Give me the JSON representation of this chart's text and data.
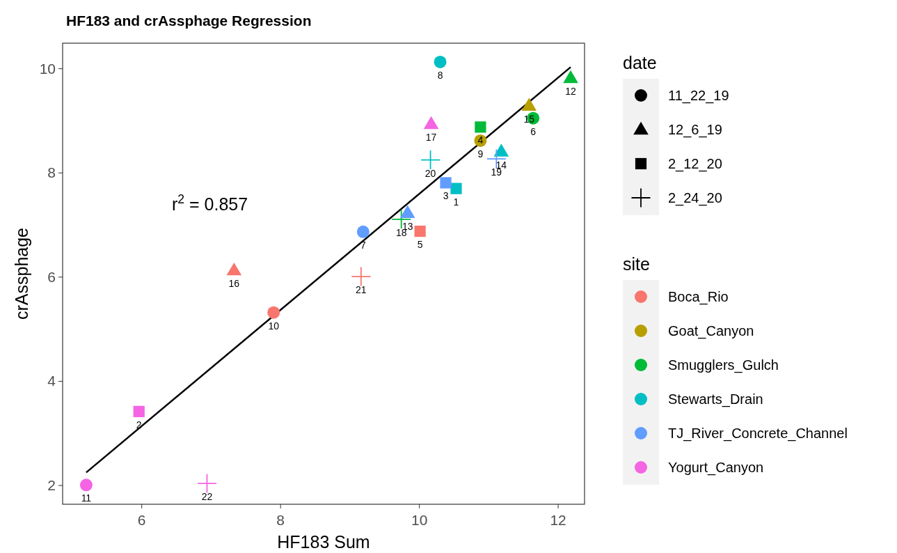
{
  "chart_data": {
    "type": "scatter",
    "title": "HF183 and crAssphage Regression",
    "xlabel": "HF183 Sum",
    "ylabel": "crAssphage",
    "legend_title": "site",
    "legend": "right",
    "xlim": [
      4.86,
      12.38
    ],
    "xticks": [
      6,
      8,
      10,
      12
    ],
    "ylim": [
      1.64,
      10.49
    ],
    "yticks": [
      2,
      4,
      6,
      8,
      10
    ],
    "grid": false,
    "annotations": [
      "r$^{2}$ = 0.857",
      "date",
      "11_22_19",
      "12_6_19",
      "2_12_20",
      "2_24_20",
      {
        "text": "1",
        "x": 10.53,
        "y": 7.7
      },
      {
        "text": "2",
        "x": 5.96,
        "y": 3.42
      },
      {
        "text": "3",
        "x": 10.38,
        "y": 7.81
      },
      {
        "text": "4",
        "x": 10.88,
        "y": 8.88
      },
      {
        "text": "5",
        "x": 10.01,
        "y": 6.88
      },
      {
        "text": "6",
        "x": 11.64,
        "y": 9.05
      },
      {
        "text": "7",
        "x": 9.19,
        "y": 6.87
      },
      {
        "text": "8",
        "x": 10.3,
        "y": 10.13
      },
      {
        "text": "9",
        "x": 10.88,
        "y": 8.62
      },
      {
        "text": "10",
        "x": 7.9,
        "y": 5.32
      },
      {
        "text": "11",
        "x": 5.2,
        "y": 2.01
      },
      {
        "text": "12",
        "x": 12.18,
        "y": 9.82
      },
      {
        "text": "13",
        "x": 9.83,
        "y": 7.23
      },
      {
        "text": "14",
        "x": 11.18,
        "y": 8.41
      },
      {
        "text": "15",
        "x": 11.58,
        "y": 9.29
      },
      {
        "text": "16",
        "x": 7.33,
        "y": 6.13
      },
      {
        "text": "17",
        "x": 10.17,
        "y": 8.94
      },
      {
        "text": "18",
        "x": 9.74,
        "y": 7.11
      },
      {
        "text": "19",
        "x": 11.11,
        "y": 8.27
      },
      {
        "text": "20",
        "x": 10.16,
        "y": 8.25
      },
      {
        "text": "21",
        "x": 9.16,
        "y": 6.01
      },
      {
        "text": "22",
        "x": 6.94,
        "y": 2.04
      }
    ],
    "series": [
      {
        "name": "Boca_Rio",
        "color": "#F8766D",
        "marker": "circle",
        "x": [
          7.9
        ],
        "values": [
          5.32
        ]
      },
      {
        "color": "#F8766D",
        "marker": "triangle",
        "x": [
          7.33
        ],
        "values": [
          6.13
        ]
      },
      {
        "color": "#F8766D",
        "marker": "square",
        "x": [
          10.01
        ],
        "values": [
          6.88
        ]
      },
      {
        "color": "#F8766D",
        "marker": "cross",
        "x": [
          9.16
        ],
        "values": [
          6.01
        ]
      },
      {
        "name": "Goat_Canyon",
        "color": "#B79F00",
        "marker": "circle",
        "x": [
          10.88
        ],
        "values": [
          8.62
        ]
      },
      {
        "color": "#B79F00",
        "marker": "triangle",
        "x": [
          11.58
        ],
        "values": [
          9.29
        ]
      },
      {
        "name": "Smugglers_Gulch",
        "color": "#00BA38",
        "marker": "circle",
        "x": [
          11.64
        ],
        "values": [
          9.05
        ]
      },
      {
        "color": "#00BA38",
        "marker": "triangle",
        "x": [
          12.18
        ],
        "values": [
          9.82
        ]
      },
      {
        "color": "#00BA38",
        "marker": "square",
        "x": [
          10.88
        ],
        "values": [
          8.88
        ]
      },
      {
        "color": "#00BA38",
        "marker": "cross",
        "x": [
          9.74
        ],
        "values": [
          7.11
        ]
      },
      {
        "name": "Stewarts_Drain",
        "color": "#00BFC4",
        "marker": "circle",
        "x": [
          10.3
        ],
        "values": [
          10.13
        ]
      },
      {
        "color": "#00BFC4",
        "marker": "triangle",
        "x": [
          11.18
        ],
        "values": [
          8.41
        ]
      },
      {
        "color": "#00BFC4",
        "marker": "square",
        "x": [
          10.53
        ],
        "values": [
          7.7
        ]
      },
      {
        "color": "#00BFC4",
        "marker": "cross",
        "x": [
          10.16
        ],
        "values": [
          8.25
        ]
      },
      {
        "name": "TJ_River_Concrete_Channel",
        "color": "#619CFF",
        "marker": "circle",
        "x": [
          9.19
        ],
        "values": [
          6.87
        ]
      },
      {
        "color": "#619CFF",
        "marker": "triangle",
        "x": [
          9.83
        ],
        "values": [
          7.23
        ]
      },
      {
        "color": "#619CFF",
        "marker": "square",
        "x": [
          10.38
        ],
        "values": [
          7.81
        ]
      },
      {
        "color": "#619CFF",
        "marker": "cross",
        "x": [
          11.11
        ],
        "values": [
          8.27
        ]
      },
      {
        "name": "Yogurt_Canyon",
        "color": "#F564E3",
        "marker": "circle",
        "x": [
          5.2
        ],
        "values": [
          2.01
        ]
      },
      {
        "color": "#F564E3",
        "marker": "triangle",
        "x": [
          10.17
        ],
        "values": [
          8.94
        ]
      },
      {
        "color": "#F564E3",
        "marker": "square",
        "x": [
          5.96
        ],
        "values": [
          3.42
        ]
      },
      {
        "color": "#F564E3",
        "marker": "cross",
        "x": [
          6.94
        ],
        "values": [
          2.04
        ]
      },
      {
        "type": "line",
        "color": "#000000",
        "x": [
          5.2,
          12.18
        ],
        "values": [
          2.25,
          10.03
        ]
      }
    ]
  }
}
